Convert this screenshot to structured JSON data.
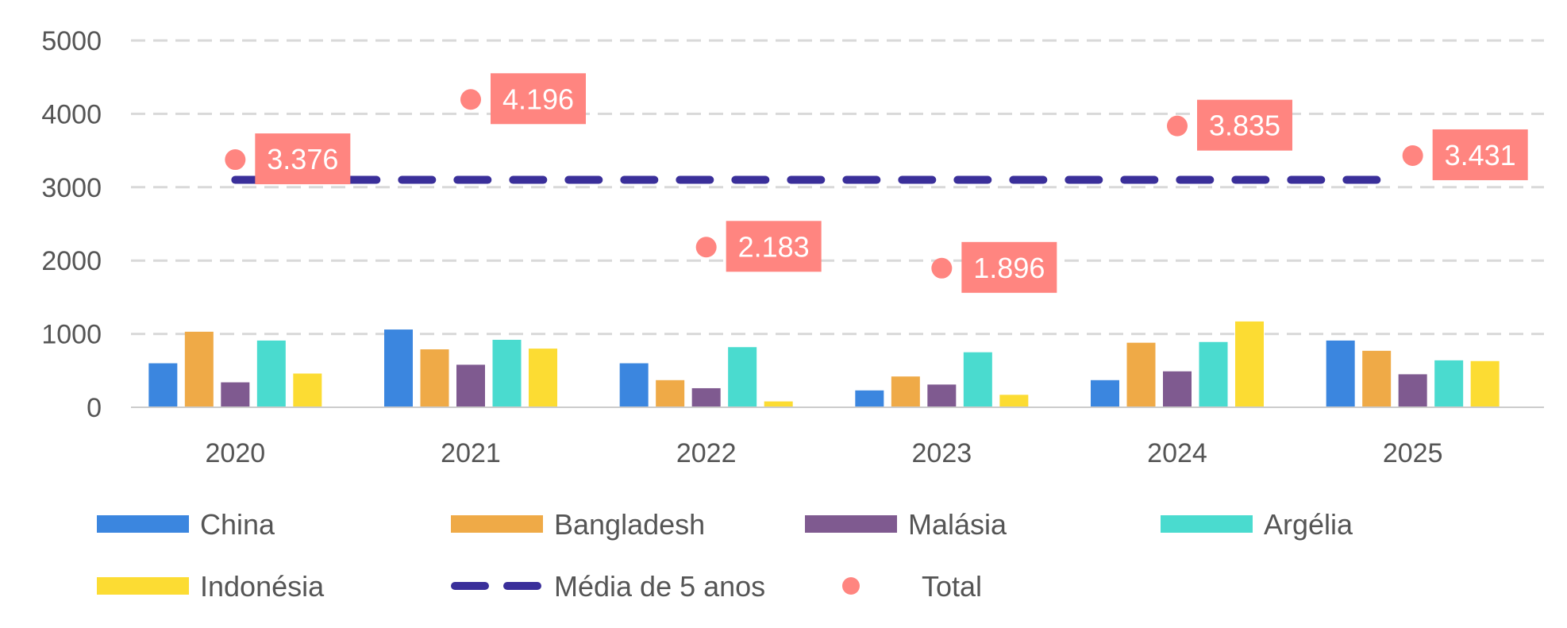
{
  "chart_data": {
    "type": "bar",
    "categories": [
      "2020",
      "2021",
      "2022",
      "2023",
      "2024",
      "2025"
    ],
    "series": [
      {
        "name": "China",
        "color": "#3B86DF",
        "values": [
          600,
          1060,
          600,
          230,
          370,
          910
        ]
      },
      {
        "name": "Bangladesh",
        "color": "#EFAA47",
        "values": [
          1030,
          790,
          370,
          420,
          880,
          770
        ]
      },
      {
        "name": "Malásia",
        "color": "#7F5A90",
        "values": [
          340,
          580,
          260,
          310,
          490,
          450
        ]
      },
      {
        "name": "Argélia",
        "color": "#4ADBCF",
        "values": [
          910,
          920,
          820,
          750,
          890,
          640
        ]
      },
      {
        "name": "Indonésia",
        "color": "#FCDC33",
        "values": [
          460,
          800,
          80,
          170,
          1170,
          630
        ]
      }
    ],
    "average": {
      "name": "Média de 5 anos",
      "color": "#3A2F9A",
      "value": 3100
    },
    "total": {
      "name": "Total",
      "color": "#FF8580",
      "values": [
        3376,
        4196,
        2183,
        1896,
        3835,
        3431
      ],
      "labels": [
        "3.376",
        "4.196",
        "2.183",
        "1.896",
        "3.835",
        "3.431"
      ]
    },
    "ylim": [
      0,
      5000
    ],
    "yticks": [
      "0",
      "1000",
      "2000",
      "3000",
      "4000",
      "5000"
    ],
    "grid": true,
    "legend": "bottom"
  }
}
